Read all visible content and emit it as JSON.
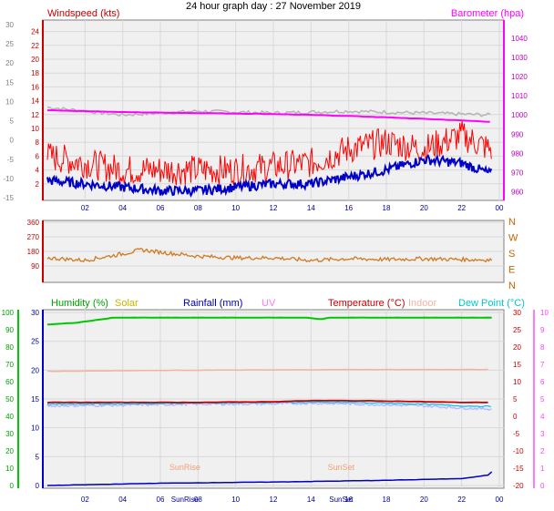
{
  "title": "24 hour graph day : 27 November 2019",
  "colors": {
    "wind": "#ff0000",
    "gust": "#0000c8",
    "baro": "#ff00ff",
    "baro_bg": "#b4b4b4",
    "dir": "#d2781e",
    "humidity": "#00c800",
    "solar": "#c8b400",
    "rain": "#0000c8",
    "uv": "#ff78ff",
    "temp": "#c80000",
    "indoor": "#f0b4a0",
    "dew": "#00c8ff",
    "axis": "#0000a0",
    "plot_bg": "#e6e6e6"
  },
  "chart_data": [
    {
      "type": "line",
      "title": "24 hour graph day : 27 November 2019",
      "left_label": "Windspeed (kts)",
      "right_label": "Barometer (hpa)",
      "x_tick_labels": [
        "02",
        "04",
        "06",
        "08",
        "10",
        "12",
        "14",
        "16",
        "18",
        "20",
        "22",
        "00"
      ],
      "y_left_ticks": [
        2,
        4,
        6,
        8,
        10,
        12,
        14,
        16,
        18,
        20,
        22,
        24
      ],
      "y_outer_left_ticks": [
        -15,
        -10,
        -5,
        0,
        5,
        10,
        15,
        20,
        25,
        30
      ],
      "y_right_ticks": [
        960,
        970,
        980,
        990,
        1000,
        1010,
        1020,
        1030,
        1040
      ],
      "y_right_labels": [
        "960",
        "970",
        "980",
        "990",
        "1000",
        "1010",
        "1020",
        "1030",
        "1040"
      ],
      "ylim_left": [
        0,
        25
      ],
      "ylim_right": [
        957,
        1047
      ],
      "grid": true,
      "series": [
        {
          "name": "Windspeed",
          "x": [
            0,
            2,
            4,
            6,
            8,
            10,
            12,
            14,
            16,
            18,
            20,
            22,
            23.5
          ],
          "values": [
            2.5,
            2,
            1.5,
            1,
            1,
            1.5,
            2,
            2,
            3,
            4,
            5.5,
            5,
            3.5
          ]
        },
        {
          "name": "Gust",
          "x": [
            0,
            2,
            4,
            6,
            8,
            10,
            12,
            14,
            16,
            18,
            20,
            22,
            23.5
          ],
          "values": [
            6,
            5,
            4,
            4,
            4,
            4,
            4.5,
            5,
            7,
            8,
            7,
            9,
            7
          ]
        },
        {
          "name": "Barometer",
          "x": [
            0,
            4,
            8,
            12,
            16,
            20,
            23.5
          ],
          "values": [
            1002.5,
            1001.5,
            1001,
            1000.5,
            999.5,
            998,
            996.5
          ]
        },
        {
          "name": "Barometer history",
          "x": [
            0,
            4,
            8,
            12,
            16,
            20,
            23.5
          ],
          "values": [
            1004,
            1000,
            1002,
            1001,
            1002,
            1001,
            1000
          ]
        }
      ]
    },
    {
      "type": "line",
      "x_tick_labels": [],
      "y_left_ticks": [
        90,
        180,
        270,
        360
      ],
      "compass_labels": [
        "N",
        "W",
        "S",
        "E",
        "N"
      ],
      "ylim": [
        0,
        360
      ],
      "series": [
        {
          "name": "Wind direction",
          "x": [
            0,
            2,
            4,
            5,
            6,
            8,
            10,
            12,
            14,
            16,
            18,
            20,
            22,
            23.5
          ],
          "values": [
            140,
            125,
            165,
            190,
            175,
            150,
            140,
            140,
            125,
            135,
            130,
            135,
            130,
            128
          ]
        }
      ]
    },
    {
      "type": "line",
      "legend": [
        "Humidity (%)",
        "Solar",
        "Rainfall (mm)",
        "UV",
        "Temperature (°C)",
        "Indoor",
        "Dew Point (°C)"
      ],
      "x_tick_labels": [
        "02",
        "04",
        "06",
        "08",
        "10",
        "12",
        "14",
        "16",
        "18",
        "20",
        "22",
        "00"
      ],
      "y_humidity_ticks": [
        0,
        10,
        20,
        30,
        40,
        50,
        60,
        70,
        80,
        90,
        100
      ],
      "y_rain_ticks": [
        0,
        5,
        10,
        15,
        20,
        25,
        30
      ],
      "y_temp_ticks": [
        -20,
        -15,
        -10,
        -5,
        0,
        5,
        10,
        15,
        20,
        25,
        30
      ],
      "y_uv_ticks": [
        0,
        1,
        2,
        3,
        4,
        5,
        6,
        7,
        8,
        9,
        10
      ],
      "sun_labels": {
        "sunrise": "SunRise",
        "sunset": "SunSet"
      },
      "sunrise_hour": 7.3,
      "sunset_hour": 15.6,
      "series": [
        {
          "name": "Humidity",
          "x": [
            0,
            1.5,
            2.2,
            3.5,
            13.8,
            14.5,
            15,
            16,
            24
          ],
          "values": [
            93,
            94,
            95,
            97,
            97,
            96,
            97,
            97,
            97
          ]
        },
        {
          "name": "Temperature",
          "x": [
            0,
            4,
            8,
            12,
            14,
            16,
            18,
            20,
            22,
            24
          ],
          "values": [
            4,
            4,
            4,
            4.2,
            4.5,
            4.5,
            4.4,
            4.2,
            4,
            4
          ]
        },
        {
          "name": "Indoor",
          "x": [
            0,
            8,
            16,
            24
          ],
          "values": [
            13,
            13.3,
            13.5,
            13.5
          ]
        },
        {
          "name": "Dew Point",
          "x": [
            0,
            4,
            8,
            12,
            14,
            16,
            18,
            20,
            22,
            24
          ],
          "values": [
            3.5,
            3.6,
            3.8,
            4,
            4,
            4,
            3.8,
            3.5,
            3,
            2.8
          ]
        },
        {
          "name": "Dew Point 2",
          "x": [
            0,
            4,
            8,
            12,
            14,
            16,
            18,
            20,
            22,
            24
          ],
          "values": [
            3,
            3.2,
            3.5,
            3.6,
            3.8,
            3.6,
            3.3,
            3,
            2.4,
            2
          ]
        },
        {
          "name": "Rainfall",
          "x": [
            0,
            6,
            12,
            18,
            22,
            23.4,
            23.8,
            24
          ],
          "values": [
            0,
            0.4,
            0.6,
            0.9,
            1.2,
            1.8,
            3,
            1
          ]
        }
      ]
    }
  ]
}
